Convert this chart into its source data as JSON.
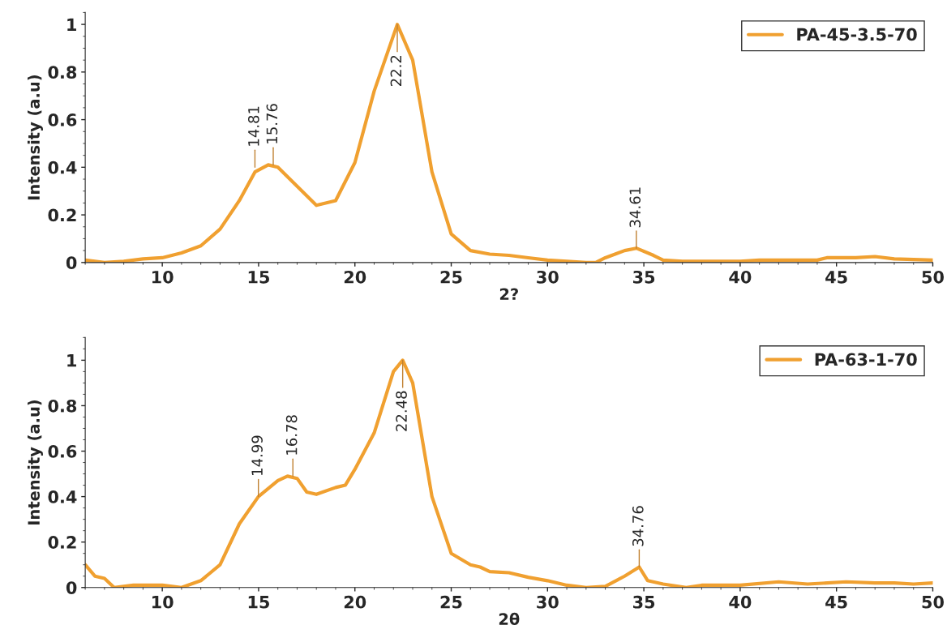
{
  "chart_data": [
    {
      "type": "line",
      "xlabel": "2?",
      "ylabel": "Intensity (a.u)",
      "xlim": [
        6,
        50
      ],
      "xticks": [
        10,
        15,
        20,
        25,
        30,
        35,
        40,
        45,
        50
      ],
      "ylim": [
        0,
        1.05
      ],
      "yticks": [
        0,
        0.2,
        0.4,
        0.6,
        0.8,
        1
      ],
      "grid": false,
      "legend": "top right",
      "marker": "none",
      "line_style": "solid",
      "series": [
        {
          "name": "PA-45-3.5-70",
          "color": "#f0a030",
          "x": [
            6,
            7,
            8,
            9,
            10,
            11,
            12,
            13,
            14,
            14.81,
            15.5,
            16,
            17,
            18,
            19,
            20,
            21,
            22.2,
            23,
            24,
            25,
            26,
            27,
            28,
            29,
            30,
            31,
            32,
            32.5,
            33,
            34,
            34.61,
            35.5,
            36,
            37,
            40,
            41,
            44,
            44.5,
            45,
            46,
            47,
            48,
            50
          ],
          "values": [
            0.01,
            0.0,
            0.005,
            0.015,
            0.02,
            0.04,
            0.07,
            0.14,
            0.26,
            0.38,
            0.41,
            0.4,
            0.32,
            0.24,
            0.26,
            0.42,
            0.72,
            1.0,
            0.85,
            0.38,
            0.12,
            0.05,
            0.035,
            0.03,
            0.02,
            0.01,
            0.005,
            0.0,
            0.0,
            0.02,
            0.05,
            0.06,
            0.03,
            0.01,
            0.005,
            0.005,
            0.01,
            0.01,
            0.02,
            0.02,
            0.02,
            0.025,
            0.015,
            0.01
          ]
        }
      ],
      "annotations": [
        {
          "text": "14.81",
          "x": 14.81,
          "y": 0.4
        },
        {
          "text": "15.76",
          "x": 15.76,
          "y": 0.41
        },
        {
          "text": "22.2",
          "x": 22.2,
          "y": 1.0
        },
        {
          "text": "34.61",
          "x": 34.61,
          "y": 0.06
        }
      ]
    },
    {
      "type": "line",
      "xlabel": "2θ",
      "ylabel": "Intensity (a.u)",
      "xlim": [
        6,
        50
      ],
      "xticks": [
        10,
        15,
        20,
        25,
        30,
        35,
        40,
        45,
        50
      ],
      "ylim": [
        0,
        1.1
      ],
      "yticks": [
        0,
        0.2,
        0.4,
        0.6,
        0.8,
        1
      ],
      "grid": false,
      "legend": "top right",
      "marker": "none",
      "line_style": "solid",
      "series": [
        {
          "name": "PA-63-1-70",
          "color": "#f0a030",
          "x": [
            6,
            6.5,
            7,
            7.5,
            8.5,
            10,
            11,
            12,
            13,
            14,
            14.99,
            16,
            16.5,
            17,
            17.5,
            18,
            19,
            19.5,
            20,
            21,
            22,
            22.48,
            23,
            24,
            25,
            26,
            26.5,
            27,
            28,
            29,
            30,
            31,
            32,
            33,
            34,
            34.76,
            35.2,
            36,
            37.2,
            38,
            40,
            42,
            43.5,
            45.5,
            47,
            48,
            49,
            50
          ],
          "values": [
            0.1,
            0.05,
            0.04,
            0.0,
            0.01,
            0.01,
            0.0,
            0.03,
            0.1,
            0.28,
            0.4,
            0.47,
            0.49,
            0.48,
            0.42,
            0.41,
            0.44,
            0.45,
            0.52,
            0.68,
            0.95,
            1.0,
            0.9,
            0.4,
            0.15,
            0.1,
            0.09,
            0.07,
            0.065,
            0.045,
            0.03,
            0.01,
            0.0,
            0.005,
            0.05,
            0.09,
            0.03,
            0.015,
            0.0,
            0.01,
            0.01,
            0.025,
            0.015,
            0.025,
            0.02,
            0.02,
            0.015,
            0.02
          ]
        }
      ],
      "annotations": [
        {
          "text": "14.99",
          "x": 14.99,
          "y": 0.4
        },
        {
          "text": "16.78",
          "x": 16.78,
          "y": 0.49
        },
        {
          "text": "22.48",
          "x": 22.48,
          "y": 1.0
        },
        {
          "text": "34.76",
          "x": 34.76,
          "y": 0.09
        }
      ]
    }
  ]
}
